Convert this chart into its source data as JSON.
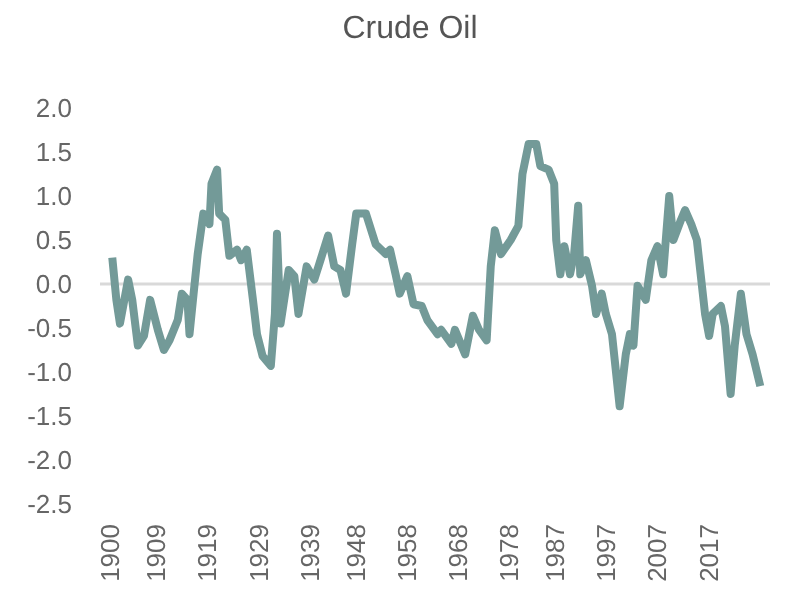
{
  "chart_data": {
    "type": "line",
    "title": "Crude Oil",
    "x": [
      1900.4,
      1901.2,
      1901.9,
      1903.5,
      1904.3,
      1905.4,
      1906.6,
      1907.8,
      1909.3,
      1910.5,
      1911.6,
      1913.2,
      1914,
      1915.1,
      1915.5,
      1916.3,
      1917.1,
      1918.2,
      1919.4,
      1919.8,
      1920.9,
      1921.3,
      1922.5,
      1923.3,
      1924.8,
      1925.6,
      1926.7,
      1927.9,
      1928.7,
      1929.8,
      1931.4,
      1932.2,
      1932.6,
      1933.3,
      1934.9,
      1936,
      1936.8,
      1938.4,
      1939.9,
      1941.1,
      1942.6,
      1943.8,
      1945,
      1946.1,
      1947.3,
      1948.1,
      1950,
      1951.9,
      1953.9,
      1954.7,
      1955.8,
      1956.6,
      1958.1,
      1959.3,
      1960.9,
      1962,
      1964,
      1964.7,
      1966.7,
      1967.4,
      1969.4,
      1970.9,
      1972.1,
      1973.6,
      1974.4,
      1975.2,
      1976.4,
      1978.3,
      1979.8,
      1980.6,
      1981.8,
      1983.3,
      1984.1,
      1985.7,
      1986.8,
      1987.2,
      1988,
      1988.8,
      1989.9,
      1990.7,
      1991.5,
      1991.9,
      1993,
      1994.2,
      1995,
      1996.1,
      1996.9,
      1998.1,
      1999.6,
      2000.8,
      2001.6,
      2002.3,
      2003.1,
      2004.7,
      2005.8,
      2007,
      2008.1,
      2009.3,
      2010.1,
      2011.6,
      2012.4,
      2013.6,
      2014.7,
      2016.3,
      2017.1,
      2017.8,
      2019.4,
      2020.2,
      2021.3,
      2022.1,
      2023.3,
      2024.4,
      2025.6,
      2027.1
    ],
    "series": [
      {
        "color": "#739a98",
        "values": [
          0.3,
          -0.18,
          -0.45,
          0.05,
          -0.18,
          -0.7,
          -0.59,
          -0.18,
          -0.52,
          -0.75,
          -0.64,
          -0.41,
          -0.11,
          -0.18,
          -0.57,
          -0.11,
          0.34,
          0.8,
          0.68,
          1.14,
          1.3,
          0.8,
          0.73,
          0.32,
          0.39,
          0.27,
          0.39,
          -0.18,
          -0.57,
          -0.82,
          -0.93,
          -0.34,
          0.57,
          -0.45,
          0.16,
          0.09,
          -0.34,
          0.2,
          0.05,
          0.27,
          0.55,
          0.2,
          0.16,
          -0.11,
          0.45,
          0.8,
          0.8,
          0.45,
          0.34,
          0.39,
          0.11,
          -0.11,
          0.09,
          -0.23,
          -0.25,
          -0.41,
          -0.57,
          -0.52,
          -0.68,
          -0.52,
          -0.8,
          -0.36,
          -0.52,
          -0.64,
          0.2,
          0.61,
          0.34,
          0.5,
          0.66,
          1.25,
          1.59,
          1.59,
          1.34,
          1.3,
          1.14,
          0.5,
          0.11,
          0.43,
          0.11,
          0.34,
          0.89,
          0.11,
          0.27,
          -0.02,
          -0.34,
          -0.11,
          -0.34,
          -0.57,
          -1.39,
          -0.8,
          -0.57,
          -0.7,
          -0.02,
          -0.18,
          0.27,
          0.43,
          0.11,
          1.0,
          0.5,
          0.73,
          0.84,
          0.68,
          0.5,
          -0.34,
          -0.59,
          -0.34,
          -0.25,
          -0.48,
          -1.25,
          -0.7,
          -0.11,
          -0.57,
          -0.8,
          -1.16
        ]
      }
    ],
    "xlim": [
      1898,
      2029
    ],
    "xticks": [
      1900,
      1909,
      1919,
      1929,
      1939,
      1948,
      1958,
      1968,
      1978,
      1987,
      1997,
      2007,
      2017
    ],
    "ylim": [
      -2.5,
      2.0
    ],
    "yticks": [
      {
        "value": 2.0,
        "label": "2.0"
      },
      {
        "value": 1.5,
        "label": "1.5"
      },
      {
        "value": 1.0,
        "label": "1.0"
      },
      {
        "value": 0.5,
        "label": "0.5"
      },
      {
        "value": 0,
        "label": "0.0"
      },
      {
        "value": -0.5,
        "label": "-0.5"
      },
      {
        "value": -1.0,
        "label": "-1.0"
      },
      {
        "value": -1.5,
        "label": "-1.5"
      },
      {
        "value": -2.0,
        "label": "-2.0"
      },
      {
        "value": -2.5,
        "label": "-2.5"
      }
    ],
    "ref_lines": [
      {
        "axis": "y",
        "value": 0,
        "color": "#d9d9d9"
      }
    ],
    "grid": false,
    "legend": false,
    "marker": "none",
    "line_style": "solid"
  }
}
